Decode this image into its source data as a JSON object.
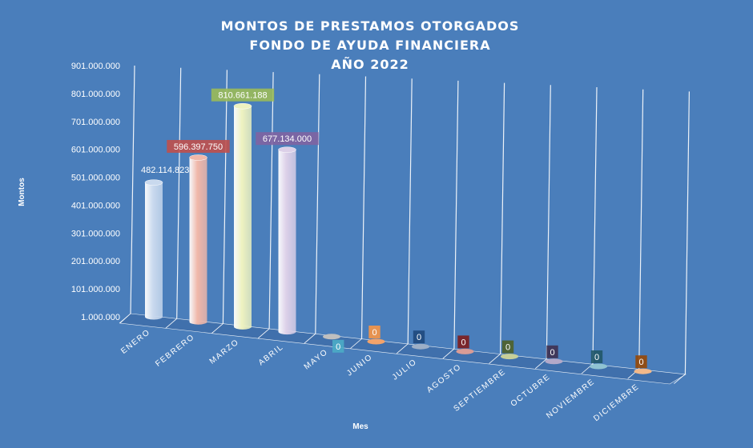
{
  "chart_data": {
    "type": "bar",
    "title_lines": [
      "MONTOS  DE  PRESTAMOS  OTORGADOS",
      "FONDO  DE  AYUDA  FINANCIERA",
      "AÑO  2022"
    ],
    "xlabel": "Mes",
    "ylabel": "Montos",
    "ylim": [
      1000000,
      901000000
    ],
    "yticks": [
      "901.000.000",
      "801.000.000",
      "701.000.000",
      "601.000.000",
      "501.000.000",
      "401.000.000",
      "301.000.000",
      "201.000.000",
      "101.000.000",
      "1.000.000"
    ],
    "categories": [
      "ENERO",
      "FEBRERO",
      "MARZO",
      "ABRIL",
      "MAYO",
      "JUNIO",
      "JULIO",
      "AGOSTO",
      "SEPTIEMBRE",
      "OCTUBRE",
      "NOVIEMBRE",
      "DICIEMBRE"
    ],
    "values": [
      482114823,
      596397750,
      810661188,
      677134000,
      0,
      0,
      0,
      0,
      0,
      0,
      0,
      0
    ],
    "data_labels": [
      "482.114.823",
      "596.397.750",
      "810.661.188",
      "677.134.000",
      "0",
      "0",
      "0",
      "0",
      "0",
      "0",
      "0",
      "0"
    ],
    "colors": [
      "#c9d9ee",
      "#f0b7a9",
      "#eef2c0",
      "#dcd0e8",
      "#bfbfbf",
      "#f3a36b",
      "#9dafc7",
      "#d99c96",
      "#c6cf99",
      "#b3a9c9",
      "#8fc3d2",
      "#f3b98a"
    ],
    "label_box_colors": [
      "",
      "#c0504d",
      "#9bbb59",
      "#8064a2",
      "#4bacc6",
      "#f79646",
      "#1f497d",
      "#7f1d1d",
      "#4f6228",
      "#3f3151",
      "#215868",
      "#974806"
    ],
    "grid": true,
    "legend": "none"
  }
}
